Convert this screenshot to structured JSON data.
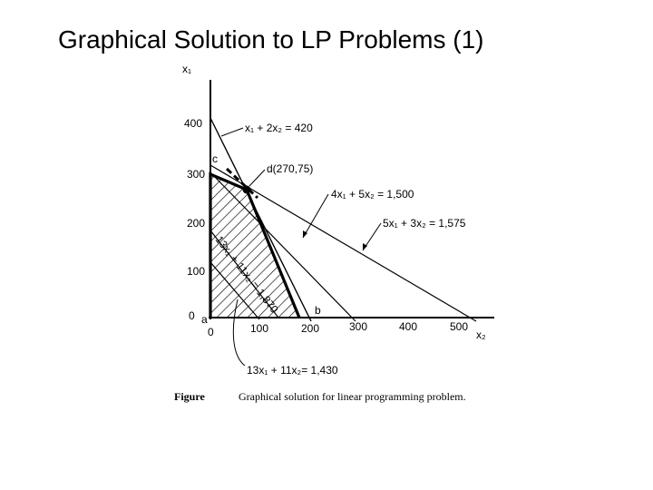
{
  "slide": {
    "title": "Graphical Solution to LP Problems (1)"
  },
  "figure": {
    "axis_x_label": "x₂",
    "axis_y_label": "x₁",
    "ticks_x": [
      "0",
      "100",
      "200",
      "300",
      "400",
      "500"
    ],
    "ticks_y": [
      "0",
      "100",
      "200",
      "300",
      "400"
    ],
    "constraints": {
      "c1": "x₁ + 2x₂ = 420",
      "c2": "4x₁ + 5x₂ = 1,500",
      "c3": "5x₁ + 3x₂ = 1,575"
    },
    "objective_lines": {
      "iso1": "13x₁ + 11x₂= 1,430",
      "iso2": "13x₁ + 11x₂ = 1,870"
    },
    "points": {
      "a": "a",
      "b": "b",
      "c": "c",
      "d": "d(270,75)"
    },
    "caption_label": "Figure",
    "caption_text": "Graphical solution for linear programming problem."
  }
}
